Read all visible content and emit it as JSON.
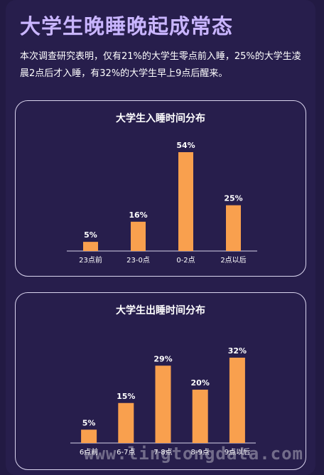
{
  "header": {
    "title": "大学生晚睡晚起成常态",
    "description": "本次调查研究表明，仅有21%的大学生零点前入睡，25%的大学生凌晨2点后才入睡，有32%的大学生早上9点后醒来。"
  },
  "colors": {
    "background": "#221a43",
    "title": "#c9b5ff",
    "bar": "#f9a04e",
    "border": "#d9d4ee"
  },
  "chart_data": [
    {
      "type": "bar",
      "title": "大学生入睡时间分布",
      "categories": [
        "23点前",
        "23-0点",
        "0-2点",
        "2点以后"
      ],
      "values": [
        5,
        16,
        54,
        25
      ],
      "value_labels": [
        "5%",
        "16%",
        "54%",
        "25%"
      ],
      "ylim": [
        0,
        54
      ],
      "grid": false
    },
    {
      "type": "bar",
      "title": "大学生出睡时间分布",
      "categories": [
        "6点前",
        "6-7点",
        "7-8点",
        "8-9点",
        "9点以后"
      ],
      "values": [
        5,
        15,
        29,
        20,
        32
      ],
      "value_labels": [
        "5%",
        "15%",
        "29%",
        "20%",
        "32%"
      ],
      "ylim": [
        0,
        32
      ],
      "grid": false
    }
  ],
  "watermark": "www.lingtongdata.com"
}
